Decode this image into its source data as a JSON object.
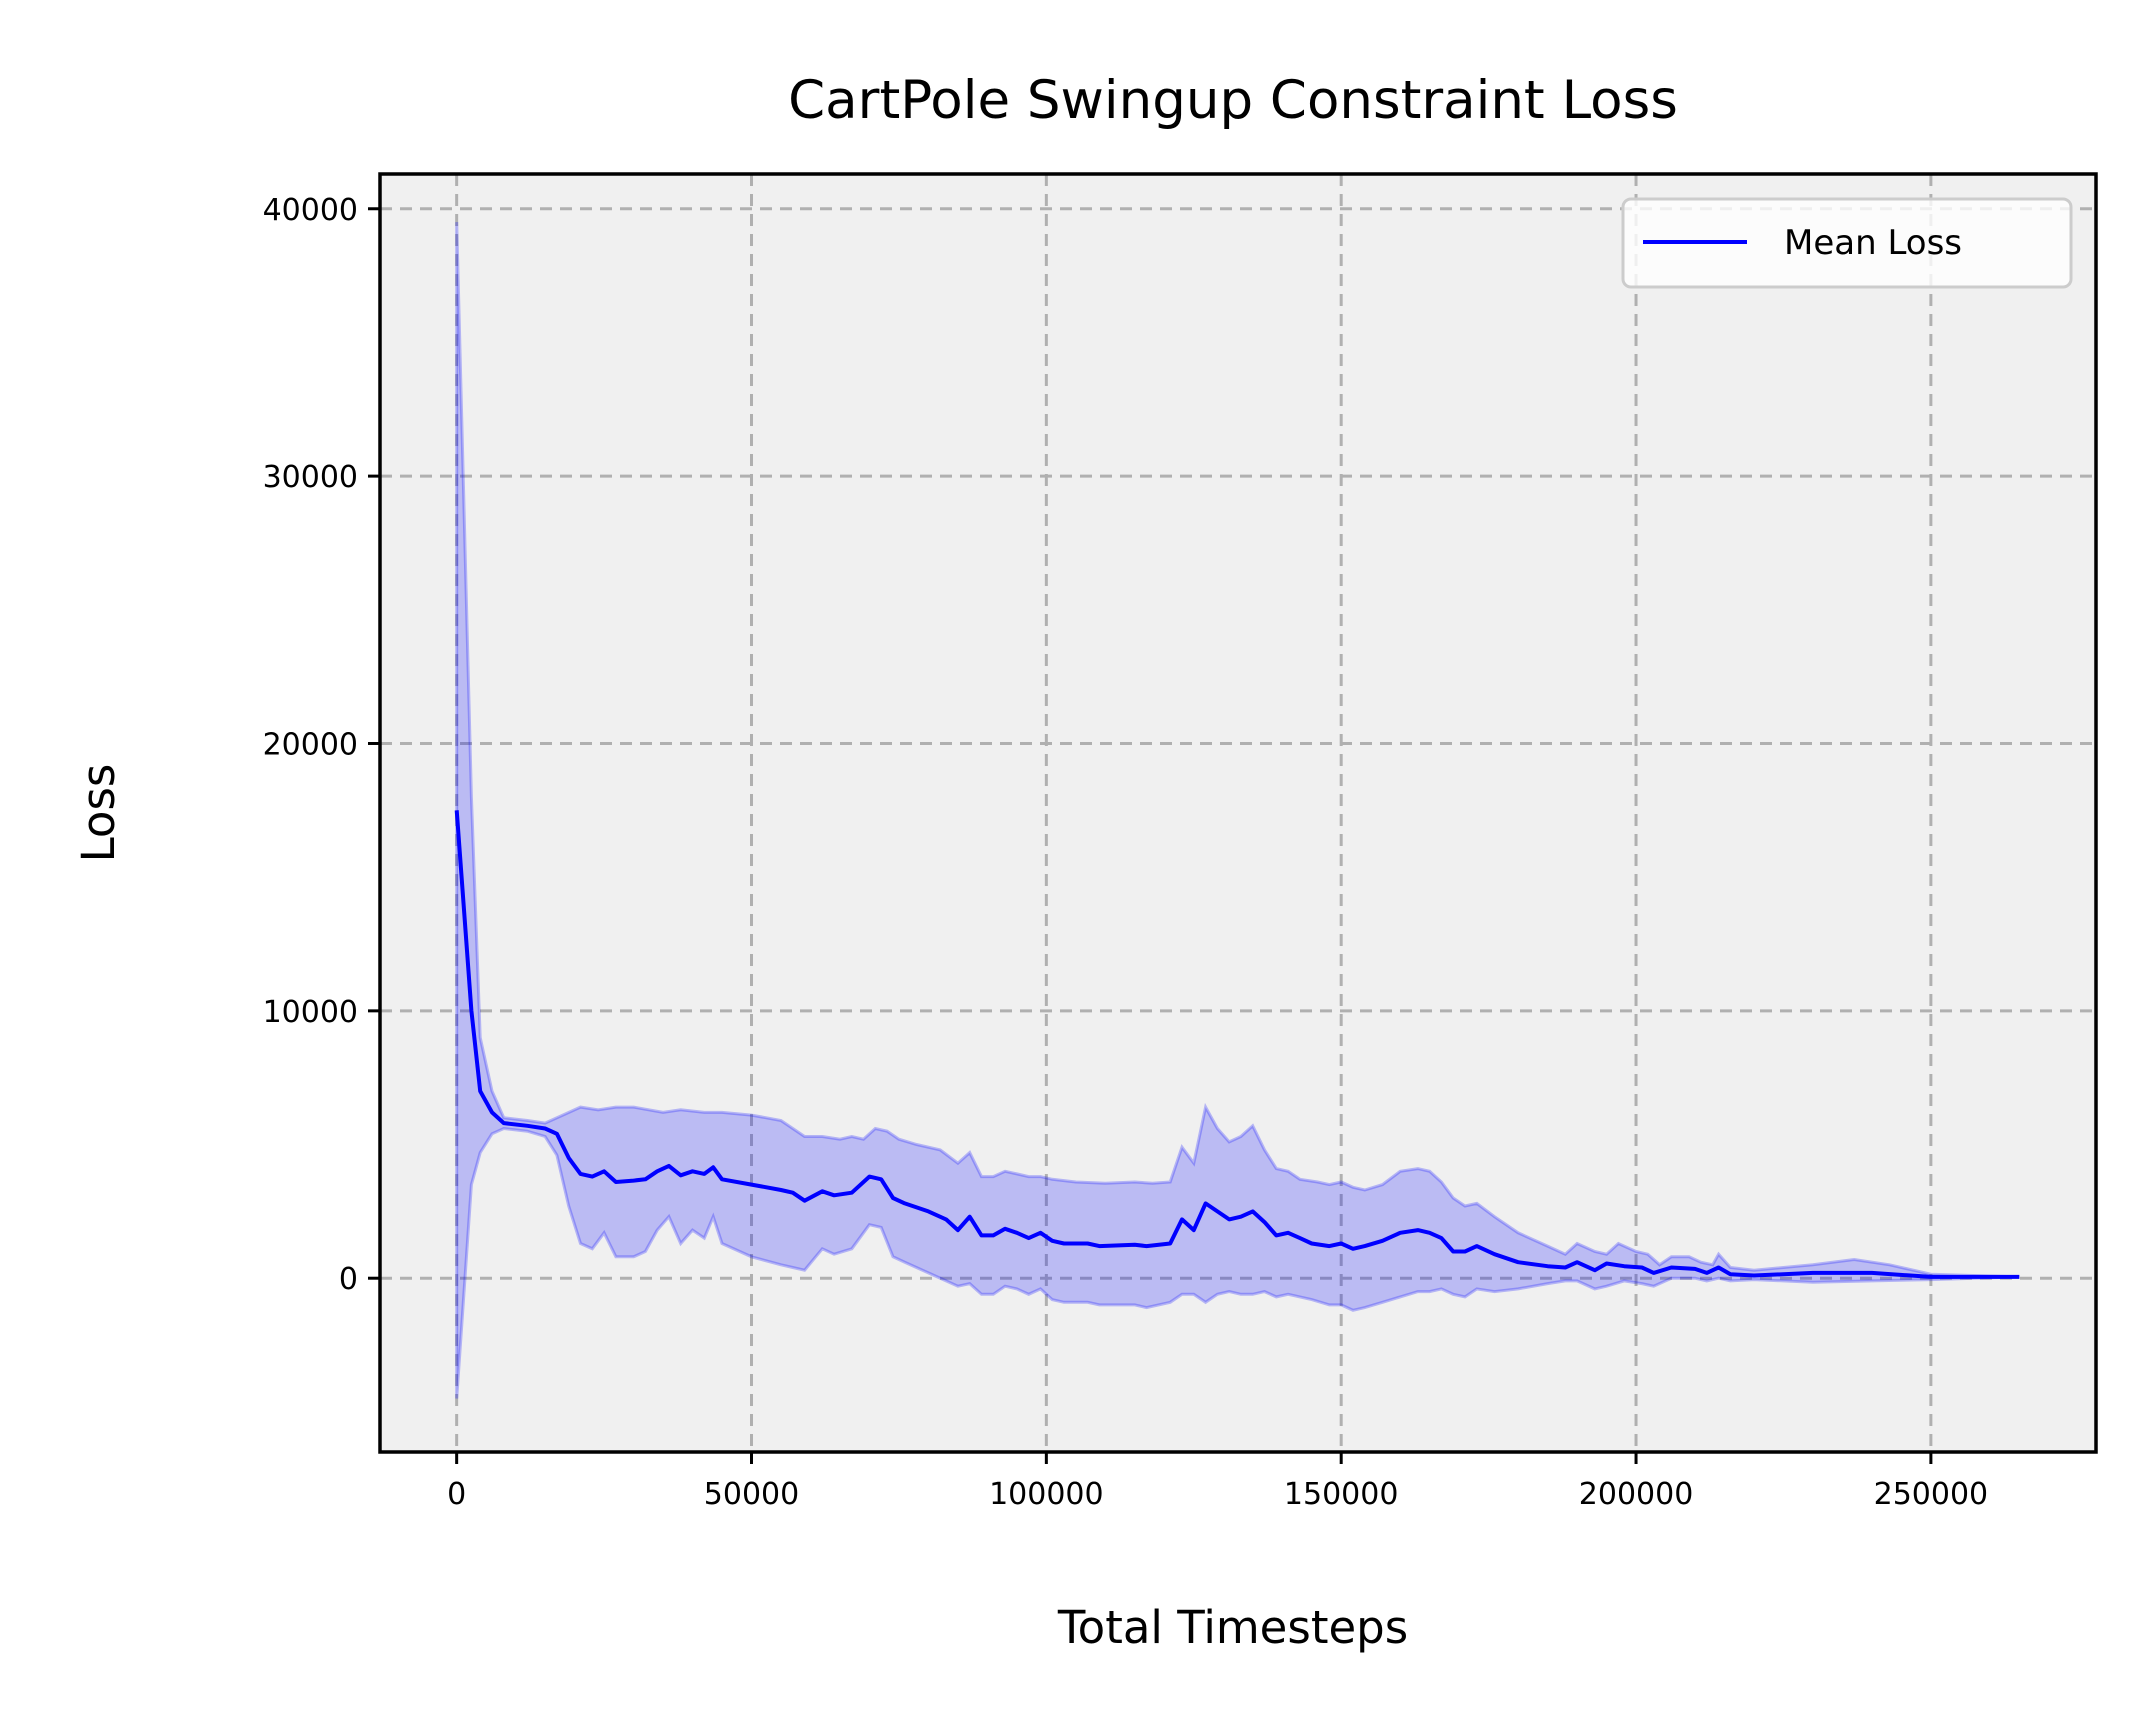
{
  "chart_data": {
    "type": "line",
    "title": "CartPole Swingup Constraint Loss",
    "xlabel": "Total Timesteps",
    "ylabel": "Loss",
    "xlim": [
      -13000,
      278000
    ],
    "ylim": [
      -6500,
      41300
    ],
    "xticks": [
      0,
      50000,
      100000,
      150000,
      200000,
      250000
    ],
    "yticks": [
      0,
      10000,
      20000,
      30000,
      40000
    ],
    "grid": true,
    "legend": "top-right",
    "colors": {
      "line": "#0000ff",
      "band": "#0000ff",
      "background": "#f0f0f0"
    },
    "series": [
      {
        "name": "Mean Loss",
        "points": [
          [
            0,
            17500
          ],
          [
            2500,
            10000
          ],
          [
            4000,
            7000
          ],
          [
            6000,
            6200
          ],
          [
            8000,
            5800
          ],
          [
            12000,
            5700
          ],
          [
            15000,
            5600
          ],
          [
            17000,
            5400
          ],
          [
            19000,
            4500
          ],
          [
            21000,
            3900
          ],
          [
            23000,
            3800
          ],
          [
            25000,
            4000
          ],
          [
            27000,
            3600
          ],
          [
            30000,
            3650
          ],
          [
            32000,
            3700
          ],
          [
            34000,
            4000
          ],
          [
            36000,
            4200
          ],
          [
            38000,
            3850
          ],
          [
            40000,
            4000
          ],
          [
            42000,
            3900
          ],
          [
            43500,
            4150
          ],
          [
            45000,
            3700
          ],
          [
            50000,
            3500
          ],
          [
            55000,
            3300
          ],
          [
            57000,
            3200
          ],
          [
            59000,
            2900
          ],
          [
            62000,
            3250
          ],
          [
            64000,
            3100
          ],
          [
            67000,
            3200
          ],
          [
            70000,
            3800
          ],
          [
            72000,
            3700
          ],
          [
            74000,
            3000
          ],
          [
            76000,
            2800
          ],
          [
            80000,
            2500
          ],
          [
            83000,
            2200
          ],
          [
            85000,
            1800
          ],
          [
            87000,
            2300
          ],
          [
            89000,
            1600
          ],
          [
            91000,
            1600
          ],
          [
            93000,
            1850
          ],
          [
            95000,
            1700
          ],
          [
            97000,
            1500
          ],
          [
            99000,
            1700
          ],
          [
            101000,
            1400
          ],
          [
            103000,
            1300
          ],
          [
            107000,
            1300
          ],
          [
            109000,
            1200
          ],
          [
            115000,
            1250
          ],
          [
            117000,
            1200
          ],
          [
            121000,
            1300
          ],
          [
            123000,
            2200
          ],
          [
            125000,
            1800
          ],
          [
            127000,
            2800
          ],
          [
            129000,
            2500
          ],
          [
            131000,
            2200
          ],
          [
            133000,
            2300
          ],
          [
            135000,
            2500
          ],
          [
            137000,
            2100
          ],
          [
            139000,
            1600
          ],
          [
            141000,
            1700
          ],
          [
            143000,
            1500
          ],
          [
            145000,
            1300
          ],
          [
            148000,
            1200
          ],
          [
            150000,
            1300
          ],
          [
            152000,
            1100
          ],
          [
            154000,
            1200
          ],
          [
            157000,
            1400
          ],
          [
            160000,
            1700
          ],
          [
            163000,
            1800
          ],
          [
            165000,
            1700
          ],
          [
            167000,
            1500
          ],
          [
            169000,
            1000
          ],
          [
            171000,
            1000
          ],
          [
            173000,
            1200
          ],
          [
            176000,
            900
          ],
          [
            180000,
            600
          ],
          [
            185000,
            450
          ],
          [
            188000,
            400
          ],
          [
            190000,
            600
          ],
          [
            193000,
            300
          ],
          [
            195000,
            550
          ],
          [
            198000,
            450
          ],
          [
            201000,
            400
          ],
          [
            203000,
            200
          ],
          [
            206000,
            400
          ],
          [
            210000,
            350
          ],
          [
            212000,
            200
          ],
          [
            214000,
            400
          ],
          [
            216000,
            150
          ],
          [
            220000,
            100
          ],
          [
            230000,
            200
          ],
          [
            240000,
            200
          ],
          [
            250000,
            50
          ],
          [
            265000,
            50
          ]
        ],
        "band_upper": [
          [
            0,
            39500
          ],
          [
            2500,
            18000
          ],
          [
            4000,
            9000
          ],
          [
            6000,
            7000
          ],
          [
            8000,
            6000
          ],
          [
            12000,
            5900
          ],
          [
            15000,
            5800
          ],
          [
            18000,
            6100
          ],
          [
            21000,
            6400
          ],
          [
            24000,
            6300
          ],
          [
            27000,
            6400
          ],
          [
            30000,
            6400
          ],
          [
            35000,
            6200
          ],
          [
            38000,
            6300
          ],
          [
            42000,
            6200
          ],
          [
            45000,
            6200
          ],
          [
            50000,
            6100
          ],
          [
            55000,
            5900
          ],
          [
            57000,
            5600
          ],
          [
            59000,
            5300
          ],
          [
            62000,
            5300
          ],
          [
            65000,
            5200
          ],
          [
            67000,
            5300
          ],
          [
            69000,
            5200
          ],
          [
            71000,
            5600
          ],
          [
            73000,
            5500
          ],
          [
            75000,
            5200
          ],
          [
            78000,
            5000
          ],
          [
            82000,
            4800
          ],
          [
            85000,
            4300
          ],
          [
            87000,
            4700
          ],
          [
            89000,
            3800
          ],
          [
            91000,
            3800
          ],
          [
            93000,
            4000
          ],
          [
            95000,
            3900
          ],
          [
            97000,
            3800
          ],
          [
            99000,
            3800
          ],
          [
            101000,
            3700
          ],
          [
            105000,
            3600
          ],
          [
            110000,
            3550
          ],
          [
            115000,
            3600
          ],
          [
            118000,
            3550
          ],
          [
            121000,
            3600
          ],
          [
            123000,
            4900
          ],
          [
            125000,
            4300
          ],
          [
            127000,
            6400
          ],
          [
            129000,
            5600
          ],
          [
            131000,
            5100
          ],
          [
            133000,
            5300
          ],
          [
            135000,
            5700
          ],
          [
            137000,
            4800
          ],
          [
            139000,
            4100
          ],
          [
            141000,
            4000
          ],
          [
            143000,
            3700
          ],
          [
            146000,
            3600
          ],
          [
            148000,
            3500
          ],
          [
            150000,
            3600
          ],
          [
            152000,
            3400
          ],
          [
            154000,
            3300
          ],
          [
            157000,
            3500
          ],
          [
            160000,
            4000
          ],
          [
            163000,
            4100
          ],
          [
            165000,
            4000
          ],
          [
            167000,
            3600
          ],
          [
            169000,
            3000
          ],
          [
            171000,
            2700
          ],
          [
            173000,
            2800
          ],
          [
            176000,
            2300
          ],
          [
            180000,
            1700
          ],
          [
            185000,
            1200
          ],
          [
            188000,
            900
          ],
          [
            190000,
            1300
          ],
          [
            193000,
            1000
          ],
          [
            195000,
            900
          ],
          [
            197000,
            1300
          ],
          [
            200000,
            1000
          ],
          [
            202000,
            900
          ],
          [
            204000,
            500
          ],
          [
            206000,
            800
          ],
          [
            209000,
            800
          ],
          [
            211000,
            600
          ],
          [
            213000,
            500
          ],
          [
            214000,
            900
          ],
          [
            216000,
            400
          ],
          [
            220000,
            300
          ],
          [
            230000,
            500
          ],
          [
            237000,
            700
          ],
          [
            243000,
            500
          ],
          [
            250000,
            150
          ],
          [
            265000,
            50
          ]
        ],
        "band_lower": [
          [
            0,
            -4500
          ],
          [
            2500,
            3500
          ],
          [
            4000,
            4700
          ],
          [
            6000,
            5400
          ],
          [
            8000,
            5600
          ],
          [
            12000,
            5500
          ],
          [
            15000,
            5300
          ],
          [
            17000,
            4600
          ],
          [
            19000,
            2700
          ],
          [
            21000,
            1300
          ],
          [
            23000,
            1100
          ],
          [
            25000,
            1700
          ],
          [
            27000,
            800
          ],
          [
            30000,
            800
          ],
          [
            32000,
            1000
          ],
          [
            34000,
            1800
          ],
          [
            36000,
            2300
          ],
          [
            38000,
            1300
          ],
          [
            40000,
            1800
          ],
          [
            42000,
            1500
          ],
          [
            43500,
            2300
          ],
          [
            45000,
            1300
          ],
          [
            50000,
            800
          ],
          [
            55000,
            500
          ],
          [
            57000,
            400
          ],
          [
            59000,
            300
          ],
          [
            62000,
            1100
          ],
          [
            64000,
            900
          ],
          [
            67000,
            1100
          ],
          [
            70000,
            2000
          ],
          [
            72000,
            1900
          ],
          [
            74000,
            800
          ],
          [
            76000,
            600
          ],
          [
            80000,
            200
          ],
          [
            83000,
            -100
          ],
          [
            85000,
            -300
          ],
          [
            87000,
            -200
          ],
          [
            89000,
            -600
          ],
          [
            91000,
            -600
          ],
          [
            93000,
            -300
          ],
          [
            95000,
            -400
          ],
          [
            97000,
            -600
          ],
          [
            99000,
            -400
          ],
          [
            101000,
            -800
          ],
          [
            103000,
            -900
          ],
          [
            107000,
            -900
          ],
          [
            109000,
            -1000
          ],
          [
            115000,
            -1000
          ],
          [
            117000,
            -1100
          ],
          [
            121000,
            -900
          ],
          [
            123000,
            -600
          ],
          [
            125000,
            -600
          ],
          [
            127000,
            -900
          ],
          [
            129000,
            -600
          ],
          [
            131000,
            -500
          ],
          [
            133000,
            -600
          ],
          [
            135000,
            -600
          ],
          [
            137000,
            -500
          ],
          [
            139000,
            -700
          ],
          [
            141000,
            -600
          ],
          [
            143000,
            -700
          ],
          [
            145000,
            -800
          ],
          [
            148000,
            -1000
          ],
          [
            150000,
            -1000
          ],
          [
            152000,
            -1200
          ],
          [
            154000,
            -1100
          ],
          [
            157000,
            -900
          ],
          [
            160000,
            -700
          ],
          [
            163000,
            -500
          ],
          [
            165000,
            -500
          ],
          [
            167000,
            -400
          ],
          [
            169000,
            -600
          ],
          [
            171000,
            -700
          ],
          [
            173000,
            -400
          ],
          [
            176000,
            -500
          ],
          [
            180000,
            -400
          ],
          [
            185000,
            -200
          ],
          [
            188000,
            -100
          ],
          [
            190000,
            -100
          ],
          [
            193000,
            -400
          ],
          [
            195000,
            -300
          ],
          [
            198000,
            -100
          ],
          [
            201000,
            -200
          ],
          [
            203000,
            -300
          ],
          [
            206000,
            0
          ],
          [
            210000,
            0
          ],
          [
            212000,
            -100
          ],
          [
            214000,
            0
          ],
          [
            216000,
            -100
          ],
          [
            220000,
            -50
          ],
          [
            230000,
            -150
          ],
          [
            240000,
            -100
          ],
          [
            250000,
            -50
          ],
          [
            265000,
            50
          ]
        ]
      }
    ]
  }
}
